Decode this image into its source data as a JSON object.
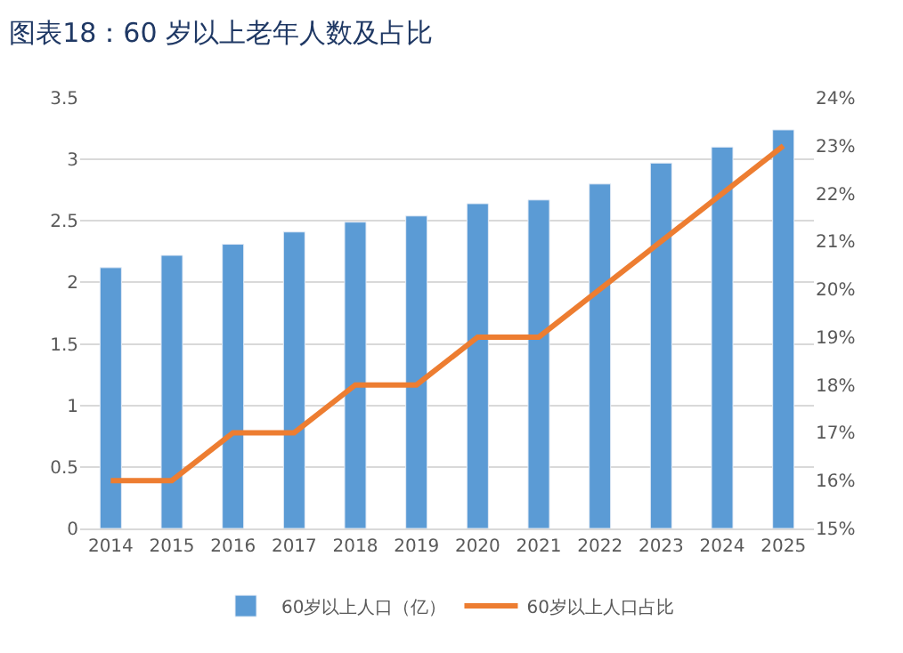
{
  "chart_data": {
    "type": "bar",
    "title": "图表18：60 岁以上老年人数及占比",
    "categories": [
      "2014",
      "2015",
      "2016",
      "2017",
      "2018",
      "2019",
      "2020",
      "2021",
      "2022",
      "2023",
      "2024",
      "2025"
    ],
    "series": [
      {
        "name": "60岁以上人口（亿）",
        "color": "#5b9bd5",
        "values": [
          2.12,
          2.22,
          2.31,
          2.41,
          2.49,
          2.54,
          2.64,
          2.67,
          2.8,
          2.97,
          3.1,
          3.24
        ]
      },
      {
        "name": "60岁以上人口占比",
        "color": "#ed7d31",
        "type": "line",
        "axis": "y2",
        "marker": "none",
        "values": [
          16,
          16,
          17,
          17,
          18,
          18,
          19,
          19,
          20,
          21,
          22,
          23
        ]
      }
    ],
    "ylim": [
      0,
      3.5
    ],
    "yticks": [
      0,
      0.5,
      1,
      1.5,
      2,
      2.5,
      3,
      3.5
    ],
    "y2lim": [
      15,
      24
    ],
    "y2ticks": [
      {
        "value": 15,
        "label": "15%"
      },
      {
        "value": 16,
        "label": "16%"
      },
      {
        "value": 17,
        "label": "17%"
      },
      {
        "value": 18,
        "label": "18%"
      },
      {
        "value": 19,
        "label": "19%"
      },
      {
        "value": 20,
        "label": "20%"
      },
      {
        "value": 21,
        "label": "21%"
      },
      {
        "value": 22,
        "label": "22%"
      },
      {
        "value": 23,
        "label": "23%"
      },
      {
        "value": 24,
        "label": "24%"
      }
    ],
    "grid": "y",
    "legend": "bottom"
  }
}
